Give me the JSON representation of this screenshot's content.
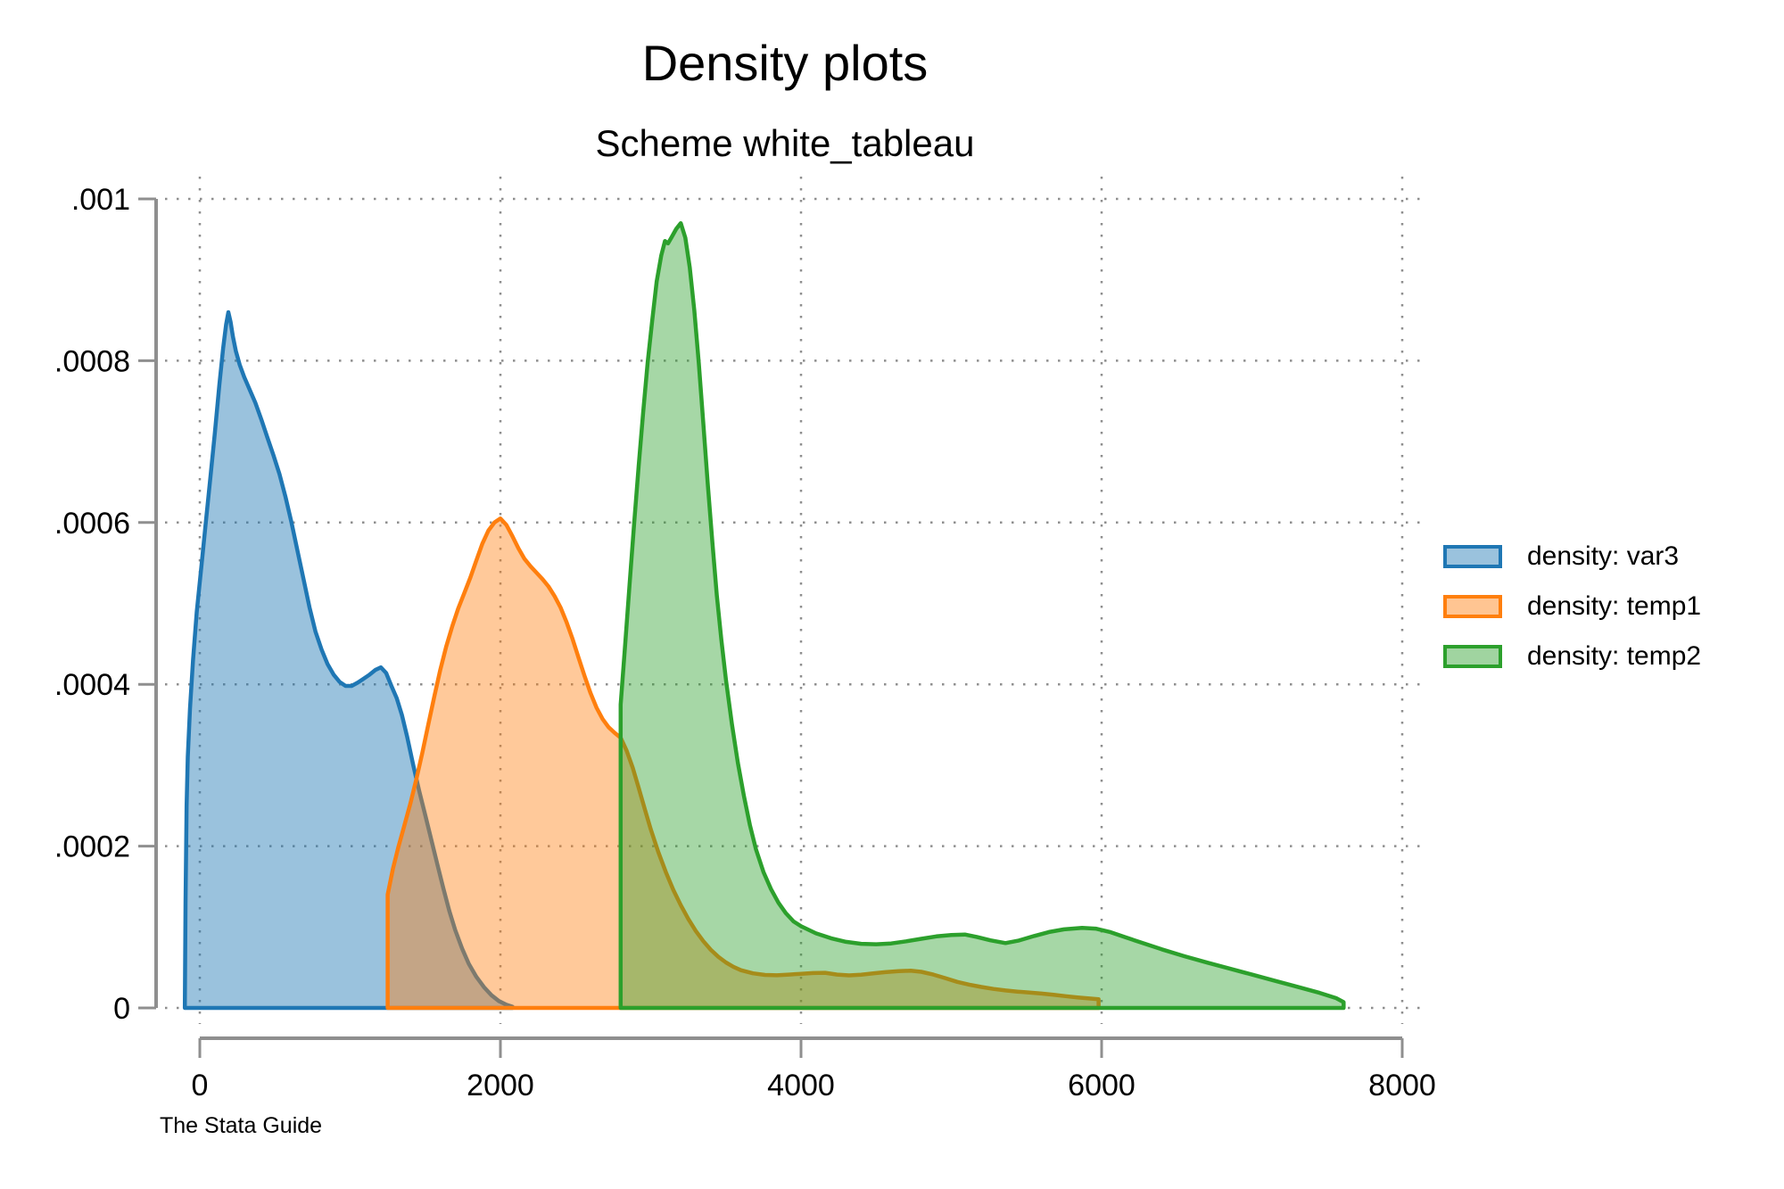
{
  "title": "Density plots",
  "subtitle": "Scheme white_tableau",
  "watermark": "The Stata Guide",
  "legend": {
    "swatch_fill_opacity": 0.45,
    "items": [
      {
        "label": "density: var3",
        "color": "#1f77b4"
      },
      {
        "label": "density: temp1",
        "color": "#ff7f0e"
      },
      {
        "label": "density: temp2",
        "color": "#2ca02c"
      }
    ]
  },
  "colors": {
    "axis": "#8f8f8f",
    "grid": "#8e8e8e",
    "text": "#000000"
  },
  "chart_data": {
    "type": "area",
    "title": "Density plots",
    "subtitle": "Scheme white_tableau",
    "xlabel": "",
    "ylabel": "",
    "xlim": [
      0,
      8000
    ],
    "ylim": [
      0,
      0.001
    ],
    "x_ticks": [
      0,
      2000,
      4000,
      6000,
      8000
    ],
    "x_tick_labels": [
      "0",
      "2000",
      "4000",
      "6000",
      "8000"
    ],
    "y_ticks": [
      0,
      0.0002,
      0.0004,
      0.0006,
      0.0008,
      0.001
    ],
    "y_tick_labels": [
      "0",
      ".0002",
      ".0004",
      ".0006",
      ".0008",
      ".001"
    ],
    "grid": "dotted",
    "legend_position": "right",
    "series": [
      {
        "name": "density: var3",
        "color": "#1f77b4",
        "fill_opacity": 0.45,
        "points": [
          [
            -100,
            0
          ],
          [
            -95,
            0.00013
          ],
          [
            -88,
            0.00025
          ],
          [
            -80,
            0.00031
          ],
          [
            -65,
            0.00037
          ],
          [
            -45,
            0.00043
          ],
          [
            -20,
            0.00049
          ],
          [
            10,
            0.000545
          ],
          [
            40,
            0.0006
          ],
          [
            70,
            0.000655
          ],
          [
            100,
            0.00071
          ],
          [
            130,
            0.00077
          ],
          [
            155,
            0.000815
          ],
          [
            175,
            0.000845
          ],
          [
            190,
            0.00086
          ],
          [
            205,
            0.000848
          ],
          [
            220,
            0.00083
          ],
          [
            240,
            0.000812
          ],
          [
            265,
            0.000795
          ],
          [
            295,
            0.00078
          ],
          [
            330,
            0.000765
          ],
          [
            370,
            0.000748
          ],
          [
            410,
            0.000727
          ],
          [
            450,
            0.000705
          ],
          [
            490,
            0.000683
          ],
          [
            530,
            0.00066
          ],
          [
            570,
            0.000632
          ],
          [
            610,
            0.0006
          ],
          [
            650,
            0.000565
          ],
          [
            690,
            0.00053
          ],
          [
            730,
            0.000495
          ],
          [
            770,
            0.000465
          ],
          [
            810,
            0.000443
          ],
          [
            850,
            0.000425
          ],
          [
            890,
            0.000412
          ],
          [
            930,
            0.000403
          ],
          [
            970,
            0.000398
          ],
          [
            1010,
            0.000398
          ],
          [
            1050,
            0.000402
          ],
          [
            1090,
            0.000407
          ],
          [
            1130,
            0.000412
          ],
          [
            1170,
            0.000418
          ],
          [
            1205,
            0.000421
          ],
          [
            1240,
            0.000414
          ],
          [
            1275,
            0.000398
          ],
          [
            1310,
            0.000383
          ],
          [
            1345,
            0.000362
          ],
          [
            1380,
            0.000335
          ],
          [
            1420,
            0.0003
          ],
          [
            1460,
            0.000268
          ],
          [
            1500,
            0.000238
          ],
          [
            1540,
            0.000208
          ],
          [
            1580,
            0.000178
          ],
          [
            1620,
            0.000148
          ],
          [
            1660,
            0.00012
          ],
          [
            1700,
            9.6e-05
          ],
          [
            1745,
            7.35e-05
          ],
          [
            1790,
            5.45e-05
          ],
          [
            1840,
            3.85e-05
          ],
          [
            1890,
            2.58e-05
          ],
          [
            1940,
            1.58e-05
          ],
          [
            1990,
            8.5e-06
          ],
          [
            2040,
            4e-06
          ],
          [
            2080,
            1.5e-06
          ]
        ]
      },
      {
        "name": "density: temp1",
        "color": "#ff7f0e",
        "fill_opacity": 0.42,
        "points": [
          [
            1250,
            0.00014
          ],
          [
            1285,
            0.000172
          ],
          [
            1320,
            0.000198
          ],
          [
            1360,
            0.000225
          ],
          [
            1400,
            0.000252
          ],
          [
            1440,
            0.000282
          ],
          [
            1480,
            0.000315
          ],
          [
            1520,
            0.00035
          ],
          [
            1560,
            0.000385
          ],
          [
            1600,
            0.000418
          ],
          [
            1640,
            0.000447
          ],
          [
            1680,
            0.000472
          ],
          [
            1720,
            0.000494
          ],
          [
            1760,
            0.000513
          ],
          [
            1800,
            0.000532
          ],
          [
            1840,
            0.000553
          ],
          [
            1880,
            0.000574
          ],
          [
            1920,
            0.00059
          ],
          [
            1960,
            0.0006
          ],
          [
            2000,
            0.000605
          ],
          [
            2040,
            0.000597
          ],
          [
            2080,
            0.000583
          ],
          [
            2120,
            0.000568
          ],
          [
            2160,
            0.000555
          ],
          [
            2200,
            0.000546
          ],
          [
            2240,
            0.000538
          ],
          [
            2280,
            0.00053
          ],
          [
            2320,
            0.000521
          ],
          [
            2360,
            0.000509
          ],
          [
            2400,
            0.000495
          ],
          [
            2440,
            0.000477
          ],
          [
            2480,
            0.000456
          ],
          [
            2520,
            0.000433
          ],
          [
            2560,
            0.00041
          ],
          [
            2600,
            0.000389
          ],
          [
            2640,
            0.000371
          ],
          [
            2680,
            0.000357
          ],
          [
            2720,
            0.000347
          ],
          [
            2760,
            0.00034
          ],
          [
            2800,
            0.000334
          ],
          [
            2840,
            0.000318
          ],
          [
            2880,
            0.000297
          ],
          [
            2920,
            0.000272
          ],
          [
            2960,
            0.000246
          ],
          [
            3000,
            0.000221
          ],
          [
            3050,
            0.000193
          ],
          [
            3100,
            0.000168
          ],
          [
            3150,
            0.000146
          ],
          [
            3200,
            0.000127
          ],
          [
            3250,
            0.00011
          ],
          [
            3300,
            9.52e-05
          ],
          [
            3350,
            8.25e-05
          ],
          [
            3400,
            7.18e-05
          ],
          [
            3450,
            6.32e-05
          ],
          [
            3500,
            5.62e-05
          ],
          [
            3550,
            5.08e-05
          ],
          [
            3600,
            4.66e-05
          ],
          [
            3680,
            4.28e-05
          ],
          [
            3760,
            4.08e-05
          ],
          [
            3840,
            4.04e-05
          ],
          [
            3920,
            4.12e-05
          ],
          [
            4000,
            4.22e-05
          ],
          [
            4080,
            4.31e-05
          ],
          [
            4160,
            4.34e-05
          ],
          [
            4240,
            4.12e-05
          ],
          [
            4320,
            4.02e-05
          ],
          [
            4400,
            4.11e-05
          ],
          [
            4480,
            4.27e-05
          ],
          [
            4560,
            4.42e-05
          ],
          [
            4650,
            4.55e-05
          ],
          [
            4730,
            4.6e-05
          ],
          [
            4800,
            4.46e-05
          ],
          [
            4880,
            4.12e-05
          ],
          [
            4960,
            3.68e-05
          ],
          [
            5040,
            3.22e-05
          ],
          [
            5120,
            2.88e-05
          ],
          [
            5200,
            2.59e-05
          ],
          [
            5280,
            2.35e-05
          ],
          [
            5360,
            2.16e-05
          ],
          [
            5440,
            2.02e-05
          ],
          [
            5520,
            1.9e-05
          ],
          [
            5600,
            1.77e-05
          ],
          [
            5680,
            1.62e-05
          ],
          [
            5760,
            1.46e-05
          ],
          [
            5840,
            1.3e-05
          ],
          [
            5910,
            1.18e-05
          ],
          [
            5980,
            1.08e-05
          ]
        ]
      },
      {
        "name": "density: temp2",
        "color": "#2ca02c",
        "fill_opacity": 0.42,
        "points": [
          [
            2800,
            0.000375
          ],
          [
            2830,
            0.00045
          ],
          [
            2860,
            0.000525
          ],
          [
            2890,
            0.0006
          ],
          [
            2920,
            0.00067
          ],
          [
            2950,
            0.000737
          ],
          [
            2980,
            0.000798
          ],
          [
            3010,
            0.00085
          ],
          [
            3040,
            0.000898
          ],
          [
            3070,
            0.00093
          ],
          [
            3095,
            0.000948
          ],
          [
            3115,
            0.000945
          ],
          [
            3140,
            0.000953
          ],
          [
            3170,
            0.000963
          ],
          [
            3200,
            0.00097
          ],
          [
            3230,
            0.000952
          ],
          [
            3260,
            0.000915
          ],
          [
            3290,
            0.000862
          ],
          [
            3320,
            0.000797
          ],
          [
            3350,
            0.000722
          ],
          [
            3380,
            0.000647
          ],
          [
            3410,
            0.000576
          ],
          [
            3440,
            0.00051
          ],
          [
            3470,
            0.000455
          ],
          [
            3500,
            0.000406
          ],
          [
            3540,
            0.000351
          ],
          [
            3580,
            0.000303
          ],
          [
            3620,
            0.000262
          ],
          [
            3660,
            0.000226
          ],
          [
            3700,
            0.000196
          ],
          [
            3750,
            0.000168
          ],
          [
            3800,
            0.000147
          ],
          [
            3850,
            0.00013
          ],
          [
            3900,
            0.000117
          ],
          [
            3950,
            0.000107
          ],
          [
            4000,
            0.000101
          ],
          [
            4100,
            9.22e-05
          ],
          [
            4200,
            8.61e-05
          ],
          [
            4300,
            8.17e-05
          ],
          [
            4400,
            7.93e-05
          ],
          [
            4500,
            7.87e-05
          ],
          [
            4600,
            7.97e-05
          ],
          [
            4700,
            8.24e-05
          ],
          [
            4800,
            8.55e-05
          ],
          [
            4900,
            8.84e-05
          ],
          [
            5000,
            9.01e-05
          ],
          [
            5090,
            9.07e-05
          ],
          [
            5170,
            8.78e-05
          ],
          [
            5260,
            8.36e-05
          ],
          [
            5360,
            8.01e-05
          ],
          [
            5450,
            8.33e-05
          ],
          [
            5550,
            8.89e-05
          ],
          [
            5650,
            9.38e-05
          ],
          [
            5750,
            9.71e-05
          ],
          [
            5870,
            9.89e-05
          ],
          [
            5960,
            9.8e-05
          ],
          [
            6060,
            9.36e-05
          ],
          [
            6160,
            8.72e-05
          ],
          [
            6260,
            8.1e-05
          ],
          [
            6400,
            7.24e-05
          ],
          [
            6550,
            6.4e-05
          ],
          [
            6700,
            5.61e-05
          ],
          [
            6850,
            4.87e-05
          ],
          [
            7000,
            4.12e-05
          ],
          [
            7150,
            3.37e-05
          ],
          [
            7300,
            2.62e-05
          ],
          [
            7450,
            1.86e-05
          ],
          [
            7560,
            1.21e-05
          ],
          [
            7610,
            7.2e-06
          ]
        ]
      }
    ]
  }
}
